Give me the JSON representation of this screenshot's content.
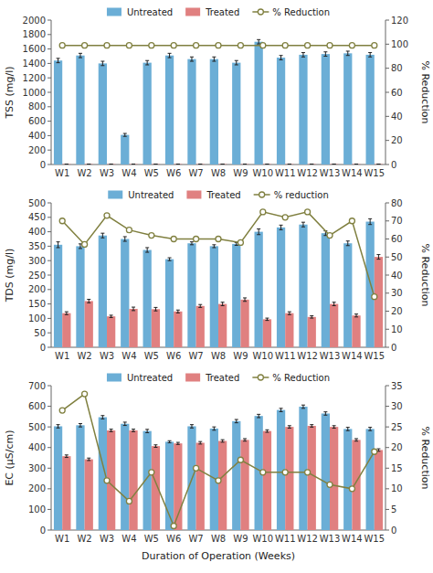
{
  "chart_data": [
    {
      "type": "bar",
      "categories": [
        "W1",
        "W2",
        "W3",
        "W4",
        "W5",
        "W6",
        "W7",
        "W8",
        "W9",
        "W10",
        "W11",
        "W12",
        "W13",
        "W14",
        "W15"
      ],
      "ylabel": "TSS (mg/l)",
      "y2label": "% Reduction",
      "ylim": [
        0,
        2000
      ],
      "yticks": [
        0,
        200,
        400,
        600,
        800,
        1000,
        1200,
        1400,
        1600,
        1800,
        2000
      ],
      "y2lim": [
        0,
        120
      ],
      "y2ticks": [
        0,
        20,
        40,
        60,
        80,
        100,
        120
      ],
      "grid": false,
      "legend": "top",
      "series": [
        {
          "name": "Untreated",
          "color": "#6BAED6",
          "values": [
            1440,
            1510,
            1400,
            410,
            1410,
            1510,
            1460,
            1460,
            1410,
            1700,
            1480,
            1520,
            1530,
            1540,
            1520
          ],
          "errors": [
            30,
            30,
            30,
            20,
            30,
            30,
            30,
            30,
            30,
            30,
            30,
            30,
            30,
            30,
            30
          ]
        },
        {
          "name": "Treated",
          "color": "#E08080",
          "values": [
            5,
            5,
            5,
            5,
            5,
            5,
            5,
            5,
            5,
            5,
            5,
            5,
            5,
            5,
            5
          ],
          "errors": [
            1,
            1,
            1,
            1,
            1,
            1,
            1,
            1,
            1,
            1,
            1,
            1,
            1,
            1,
            1
          ]
        },
        {
          "name": "% Reduction",
          "type": "line",
          "axis": "y2",
          "color": "#808040",
          "marker": "circle",
          "line_style": "solid",
          "values": [
            99,
            99,
            99,
            99,
            99,
            99,
            99,
            99,
            99,
            99,
            99,
            99,
            99,
            99,
            99
          ]
        }
      ]
    },
    {
      "type": "bar",
      "categories": [
        "W1",
        "W2",
        "W3",
        "W4",
        "W5",
        "W6",
        "W7",
        "W8",
        "W9",
        "W10",
        "W11",
        "W12",
        "W13",
        "W14",
        "W15"
      ],
      "ylabel": "TDS (mg/l)",
      "y2label": "% Reduction",
      "ylim": [
        0,
        500
      ],
      "yticks": [
        0,
        50,
        100,
        150,
        200,
        250,
        300,
        350,
        400,
        450,
        500
      ],
      "y2lim": [
        0,
        80
      ],
      "y2ticks": [
        0,
        10,
        20,
        30,
        40,
        50,
        60,
        70,
        80
      ],
      "grid": false,
      "legend": "top",
      "series": [
        {
          "name": "Untreated",
          "color": "#6BAED6",
          "values": [
            355,
            350,
            387,
            375,
            337,
            305,
            360,
            350,
            358,
            400,
            415,
            425,
            395,
            360,
            435
          ],
          "errors": [
            10,
            8,
            8,
            8,
            8,
            5,
            5,
            5,
            5,
            10,
            8,
            8,
            8,
            8,
            10
          ]
        },
        {
          "name": "Treated",
          "color": "#E08080",
          "values": [
            118,
            160,
            107,
            133,
            132,
            124,
            143,
            150,
            165,
            97,
            118,
            105,
            150,
            110,
            313
          ],
          "errors": [
            5,
            6,
            4,
            6,
            6,
            5,
            5,
            6,
            6,
            4,
            5,
            4,
            6,
            5,
            8
          ]
        },
        {
          "name": "% reduction",
          "type": "line",
          "axis": "y2",
          "color": "#808040",
          "marker": "circle",
          "line_style": "solid",
          "values": [
            70,
            57,
            73,
            65,
            62,
            60,
            60,
            60,
            58,
            75,
            72,
            75,
            62,
            70,
            28
          ]
        }
      ]
    },
    {
      "type": "bar",
      "categories": [
        "W1",
        "W2",
        "W3",
        "W4",
        "W5",
        "W6",
        "W7",
        "W8",
        "W9",
        "W10",
        "W11",
        "W12",
        "W13",
        "W14",
        "W15"
      ],
      "ylabel": "EC (μS/cm)",
      "y2label": "% Reduction",
      "xlabel": "Duration of Operation (Weeks)",
      "ylim": [
        0,
        700
      ],
      "yticks": [
        0,
        100,
        200,
        300,
        400,
        500,
        600,
        700
      ],
      "y2lim": [
        0,
        35
      ],
      "y2ticks": [
        0,
        5,
        10,
        15,
        20,
        25,
        30,
        35
      ],
      "grid": false,
      "legend": "top",
      "series": [
        {
          "name": "Untreated",
          "color": "#6BAED6",
          "values": [
            503,
            508,
            547,
            515,
            480,
            428,
            503,
            492,
            528,
            553,
            582,
            598,
            565,
            490,
            490
          ],
          "errors": [
            8,
            8,
            8,
            8,
            8,
            5,
            8,
            8,
            8,
            8,
            8,
            8,
            8,
            8,
            8
          ]
        },
        {
          "name": "Treated",
          "color": "#E08080",
          "values": [
            358,
            343,
            483,
            483,
            407,
            420,
            423,
            432,
            437,
            480,
            500,
            505,
            500,
            437,
            388
          ],
          "errors": [
            6,
            6,
            6,
            6,
            6,
            5,
            6,
            6,
            6,
            6,
            6,
            6,
            6,
            6,
            6
          ]
        },
        {
          "name": "% Reduction",
          "type": "line",
          "axis": "y2",
          "color": "#808040",
          "marker": "circle",
          "line_style": "solid",
          "values": [
            29,
            33,
            12,
            7,
            14,
            1,
            15,
            12,
            17,
            14,
            14,
            14,
            11,
            10,
            19
          ]
        }
      ]
    }
  ]
}
